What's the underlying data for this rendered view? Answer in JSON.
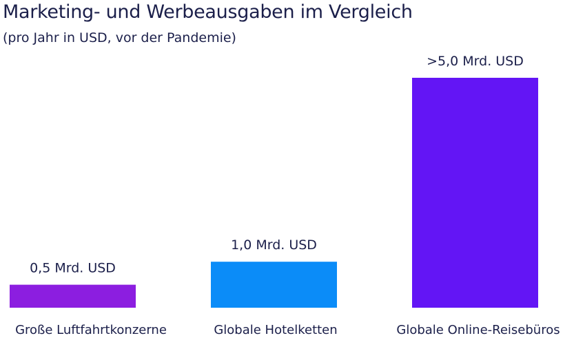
{
  "chart_data": {
    "type": "bar",
    "title": "Marketing- und Werbeausgaben im Vergleich",
    "subtitle": "(pro Jahr in USD, vor der Pandemie)",
    "categories": [
      "Große Luftfahrtkonzerne",
      "Globale Hotelketten",
      "Globale Online-Reisebüros"
    ],
    "values": [
      0.5,
      1.0,
      5.0
    ],
    "data_labels": [
      "0,5 Mrd. USD",
      "1,0 Mrd. USD",
      ">5,0 Mrd. USD"
    ],
    "units": "Mrd. USD",
    "colors": [
      "#8c1ee0",
      "#0b8cf8",
      "#6315f5"
    ],
    "ylim": [
      0,
      5.0
    ],
    "grid": false,
    "legend": "none"
  }
}
